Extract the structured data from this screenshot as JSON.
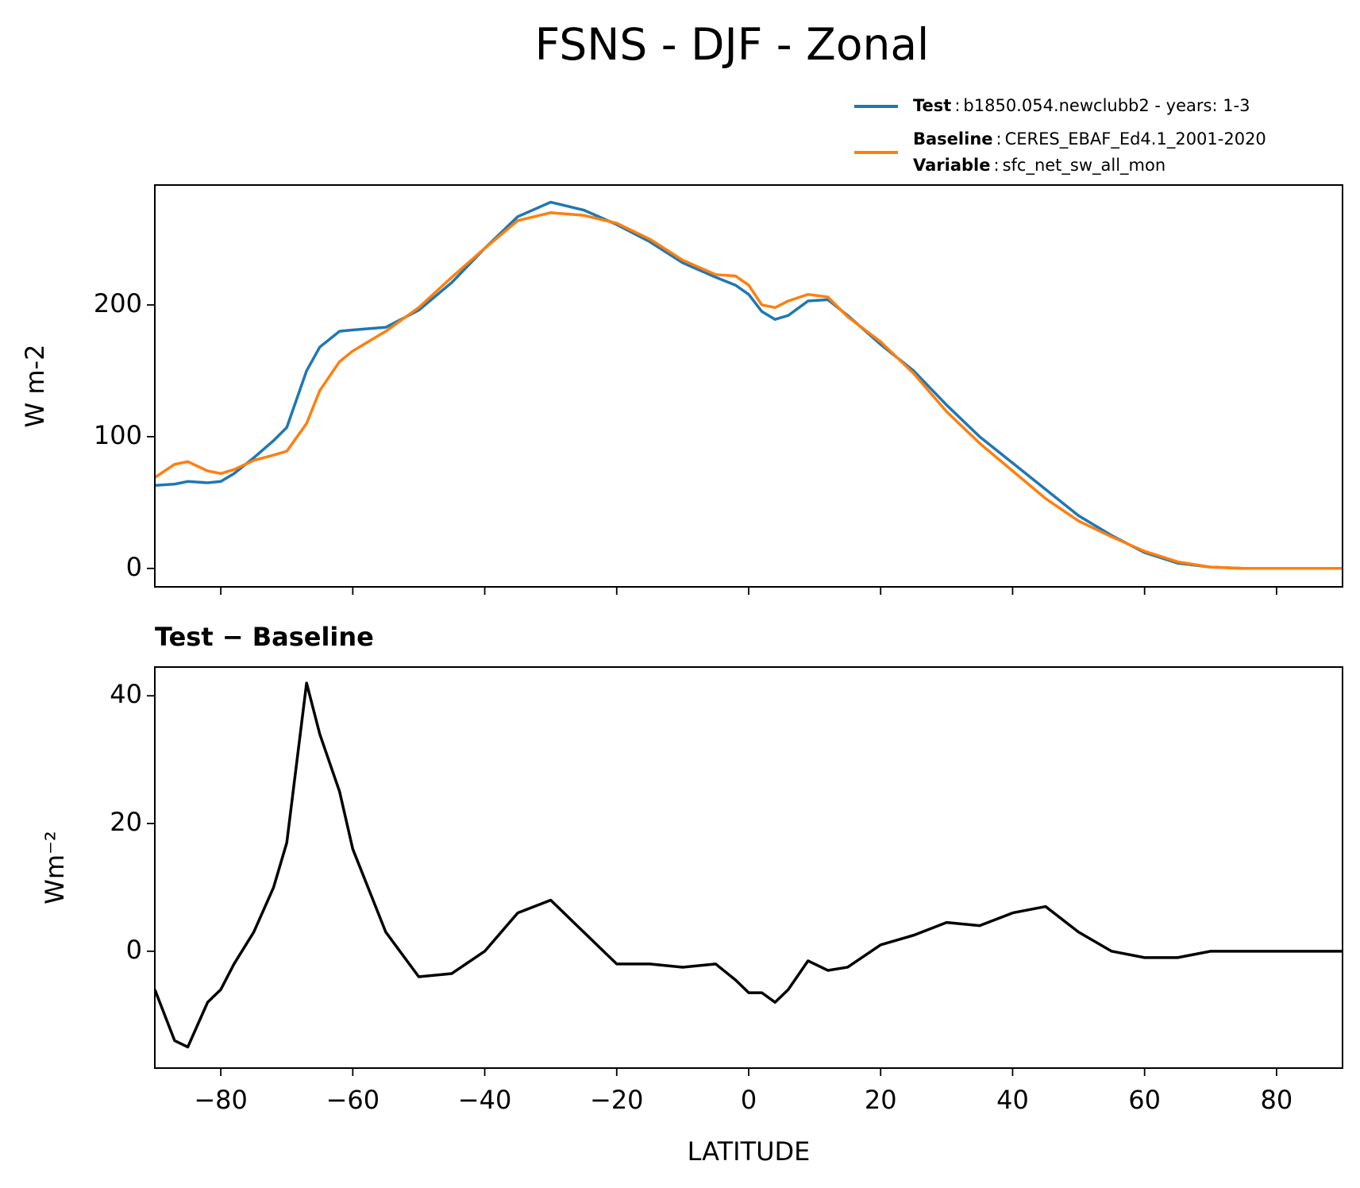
{
  "chart_data": [
    {
      "type": "line",
      "title": "FSNS - DJF - Zonal",
      "ylabel": "W m-2",
      "legend_separator": ":",
      "x": [
        -90,
        -87,
        -85,
        -82,
        -80,
        -78,
        -75,
        -72,
        -70,
        -67,
        -65,
        -62,
        -60,
        -55,
        -50,
        -45,
        -40,
        -35,
        -30,
        -25,
        -20,
        -15,
        -10,
        -5,
        -2,
        0,
        2,
        4,
        6,
        9,
        12,
        15,
        20,
        25,
        30,
        35,
        40,
        45,
        50,
        55,
        60,
        65,
        70,
        75,
        80,
        85,
        90
      ],
      "series": [
        {
          "name": "Test",
          "label": "b1850.054.newclubb2 - years: 1-3",
          "color": "#1f77b4",
          "values": [
            63,
            64,
            66,
            65,
            66,
            72,
            84,
            97,
            107,
            150,
            168,
            180,
            181,
            183,
            196,
            217,
            243,
            267,
            278,
            272,
            261,
            248,
            232,
            221,
            215,
            208,
            195,
            189,
            192,
            203,
            204,
            192,
            170,
            150,
            124,
            100,
            80,
            60,
            40,
            25,
            12,
            4,
            1,
            0,
            0,
            0,
            0
          ]
        },
        {
          "name": "Baseline",
          "label": "CERES_EBAF_Ed4.1_2001-2020",
          "color": "#ff7f0e",
          "values": [
            69,
            79,
            81,
            74,
            72,
            75,
            82,
            86,
            89,
            110,
            135,
            157,
            165,
            180,
            198,
            221,
            243,
            264,
            270,
            268,
            262,
            250,
            234,
            223,
            222,
            215,
            200,
            198,
            203,
            208,
            206,
            191,
            172,
            148,
            119,
            95,
            74,
            53,
            36,
            24,
            13,
            5,
            1,
            0,
            0,
            0,
            0
          ]
        }
      ],
      "variable": {
        "name": "Variable",
        "label": "sfc_net_sw_all_mon"
      },
      "xlim": [
        -90,
        90
      ],
      "xticks": [
        -80,
        -60,
        -40,
        -20,
        0,
        20,
        40,
        60,
        80
      ],
      "ylim": [
        -14,
        291
      ],
      "yticks": [
        0,
        100,
        200
      ]
    },
    {
      "type": "line",
      "title": "Test − Baseline",
      "xlabel": "LATITUDE",
      "ylabel": "Wm⁻²",
      "x": [
        -90,
        -87,
        -85,
        -82,
        -80,
        -78,
        -75,
        -72,
        -70,
        -67,
        -65,
        -62,
        -60,
        -55,
        -50,
        -45,
        -40,
        -35,
        -30,
        -25,
        -20,
        -15,
        -10,
        -5,
        -2,
        0,
        2,
        4,
        6,
        9,
        12,
        15,
        20,
        25,
        30,
        35,
        40,
        45,
        50,
        55,
        60,
        65,
        70,
        75,
        80,
        85,
        90
      ],
      "series": [
        {
          "color": "#000000",
          "values": [
            -6,
            -14,
            -15,
            -8,
            -6,
            -2,
            3,
            10,
            17,
            42,
            34,
            25,
            16,
            3,
            -4,
            -3.5,
            0,
            6,
            8,
            3,
            -2,
            -2,
            -2.5,
            -2,
            -4.5,
            -6.5,
            -6.5,
            -8,
            -6,
            -1.5,
            -3,
            -2.5,
            1,
            2.5,
            4.5,
            4,
            6,
            7,
            3,
            0,
            -1,
            -1,
            0,
            0,
            0,
            0,
            0
          ]
        }
      ],
      "xlim": [
        -90,
        90
      ],
      "xticks": [
        {
          "value": -80,
          "label": "−80"
        },
        {
          "value": -60,
          "label": "−60"
        },
        {
          "value": -40,
          "label": "−40"
        },
        {
          "value": -20,
          "label": "−20"
        },
        0,
        20,
        40,
        60,
        80
      ],
      "ylim": [
        -18.3,
        44.5
      ],
      "yticks": [
        0,
        20,
        40
      ]
    }
  ]
}
